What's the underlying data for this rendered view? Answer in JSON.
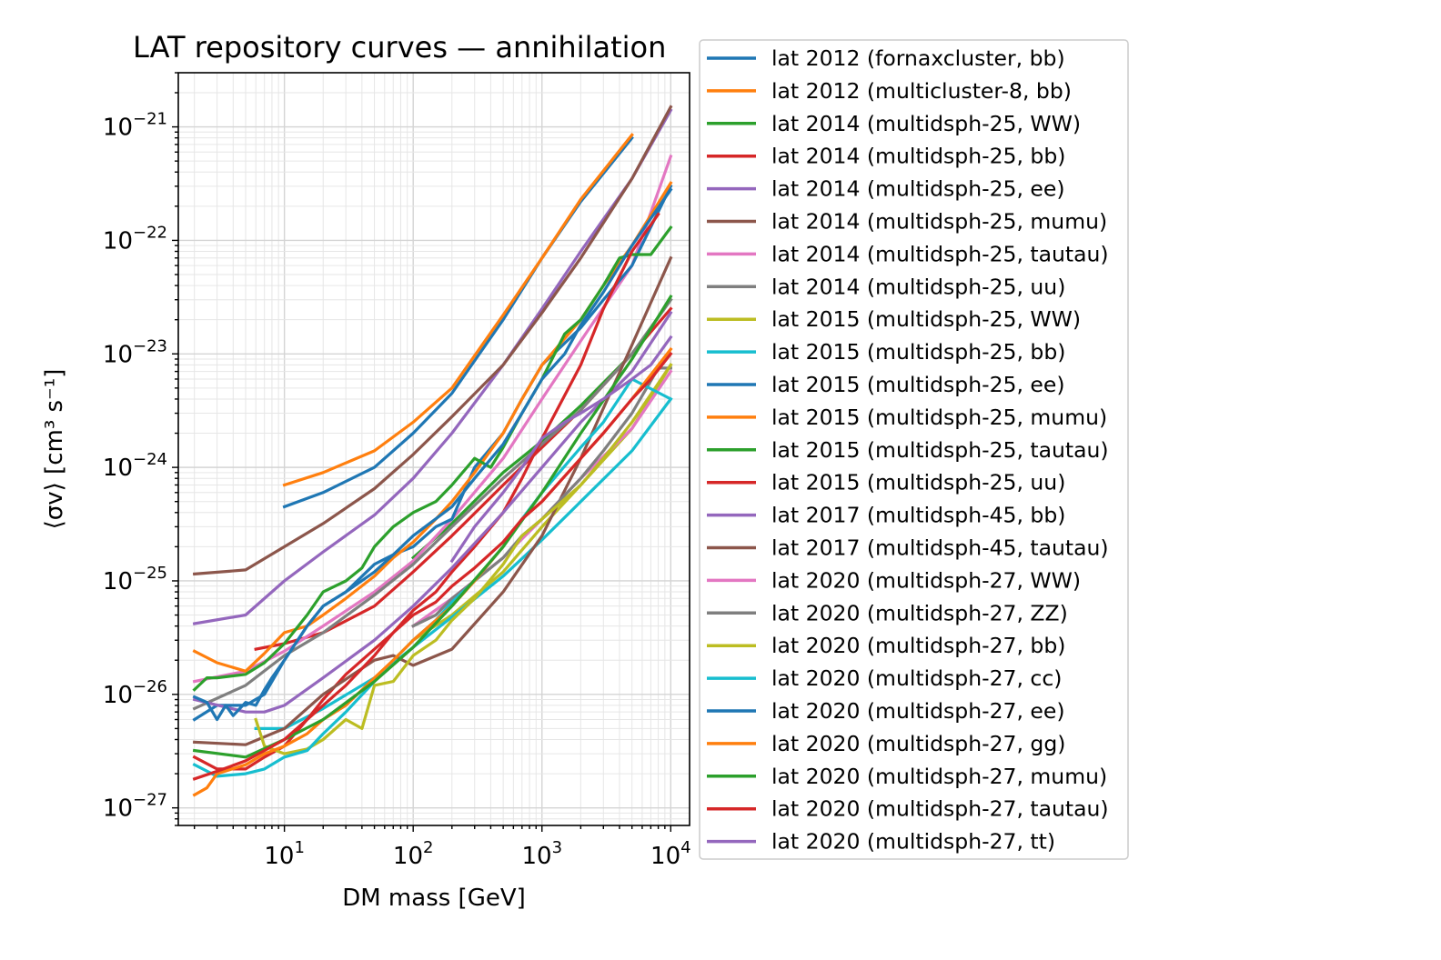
{
  "chart_data": {
    "type": "line",
    "title": "LAT repository curves — annihilation",
    "xlabel": "DM mass [GeV]",
    "ylabel": "⟨σv⟩ [cm³ s⁻¹]",
    "xscale": "log",
    "yscale": "log",
    "xlim": [
      1.5,
      14000
    ],
    "ylim": [
      7e-28,
      3e-21
    ],
    "grid": "major and minor",
    "legend_position": "right, outside plot",
    "x_ticks": [
      {
        "base": "10",
        "exp": "1",
        "value": 10
      },
      {
        "base": "10",
        "exp": "2",
        "value": 100
      },
      {
        "base": "10",
        "exp": "3",
        "value": 1000
      },
      {
        "base": "10",
        "exp": "4",
        "value": 10000
      }
    ],
    "y_ticks": [
      {
        "base": "10",
        "exp": "−27",
        "value": 1e-27
      },
      {
        "base": "10",
        "exp": "−26",
        "value": 1e-26
      },
      {
        "base": "10",
        "exp": "−25",
        "value": 1e-25
      },
      {
        "base": "10",
        "exp": "−24",
        "value": 1e-24
      },
      {
        "base": "10",
        "exp": "−23",
        "value": 1e-23
      },
      {
        "base": "10",
        "exp": "−22",
        "value": 1e-22
      },
      {
        "base": "10",
        "exp": "−21",
        "value": 1e-21
      }
    ],
    "series": [
      {
        "name": "lat 2012 (fornaxcluster, bb)",
        "color": "#1f77b4",
        "x": [
          10,
          20,
          50,
          100,
          200,
          500,
          1000,
          2000,
          5000
        ],
        "y": [
          4.5e-25,
          6e-25,
          1e-24,
          2e-24,
          4.5e-24,
          2e-23,
          7e-23,
          2.2e-22,
          8e-22
        ]
      },
      {
        "name": "lat 2012 (multicluster-8, bb)",
        "color": "#ff7f0e",
        "x": [
          10,
          20,
          50,
          100,
          200,
          500,
          1000,
          2000,
          5000
        ],
        "y": [
          7e-25,
          9e-25,
          1.4e-24,
          2.5e-24,
          5e-24,
          2.2e-23,
          7e-23,
          2.3e-22,
          8.5e-22
        ]
      },
      {
        "name": "lat 2014 (multidsph-25, WW)",
        "color": "#2ca02c",
        "x": [
          100,
          200,
          500,
          1000,
          2000,
          5000,
          10000
        ],
        "y": [
          1.6e-25,
          3.2e-25,
          9e-25,
          1.7e-24,
          3.5e-24,
          1e-23,
          3e-23
        ]
      },
      {
        "name": "lat 2014 (multidsph-25, bb)",
        "color": "#d62728",
        "x": [
          6,
          10,
          20,
          50,
          100,
          200,
          500,
          1000,
          2000,
          5000,
          10000
        ],
        "y": [
          2.5e-26,
          2.8e-26,
          3.5e-26,
          6e-26,
          1.2e-25,
          2.5e-25,
          7e-25,
          1.5e-24,
          3.2e-24,
          1e-23,
          2.5e-23
        ]
      },
      {
        "name": "lat 2014 (multidsph-25, ee)",
        "color": "#9467bd",
        "x": [
          2,
          5,
          10,
          20,
          50,
          100,
          200,
          500,
          1000,
          2000,
          5000,
          10000
        ],
        "y": [
          4.2e-26,
          5e-26,
          1e-25,
          1.8e-25,
          3.8e-25,
          8e-25,
          2e-24,
          8e-24,
          2.5e-23,
          8e-23,
          3.5e-22,
          1.4e-21
        ]
      },
      {
        "name": "lat 2014 (multidsph-25, mumu)",
        "color": "#8c564b",
        "x": [
          2,
          5,
          10,
          20,
          50,
          100,
          200,
          500,
          1000,
          2000,
          5000,
          10000
        ],
        "y": [
          1.15e-25,
          1.25e-25,
          2e-25,
          3.2e-25,
          6.5e-25,
          1.3e-24,
          2.8e-24,
          8e-24,
          2.3e-23,
          7e-23,
          3.5e-22,
          1.5e-21
        ]
      },
      {
        "name": "lat 2014 (multidsph-25, tautau)",
        "color": "#e377c2",
        "x": [
          2,
          5,
          10,
          20,
          50,
          100,
          200,
          500,
          1000,
          2000,
          5000,
          10000
        ],
        "y": [
          1.3e-26,
          1.6e-26,
          2.4e-26,
          4e-26,
          8e-26,
          1.5e-25,
          3.5e-25,
          1.2e-24,
          4e-24,
          1.3e-23,
          6e-23,
          5.5e-22
        ]
      },
      {
        "name": "lat 2014 (multidsph-25, uu)",
        "color": "#7f7f7f",
        "x": [
          2,
          5,
          10,
          20,
          50,
          100,
          200,
          500,
          1000,
          2000,
          5000,
          10000
        ],
        "y": [
          7.5e-27,
          1.2e-26,
          2.2e-26,
          3.5e-26,
          7.5e-26,
          1.4e-25,
          3e-25,
          8e-25,
          1.6e-24,
          3.2e-24,
          1e-23,
          3e-23
        ]
      },
      {
        "name": "lat 2015 (multidsph-25, WW)",
        "color": "#bcbd22",
        "x": [
          100,
          200,
          500,
          1000,
          2000,
          5000,
          10000
        ],
        "y": [
          3e-26,
          5e-26,
          1.2e-25,
          3e-25,
          7e-25,
          2.2e-24,
          8e-24
        ]
      },
      {
        "name": "lat 2015 (multidsph-25, bb)",
        "color": "#17becf",
        "x": [
          6,
          10,
          20,
          50,
          100,
          200,
          500,
          1000,
          2000,
          5000,
          10000
        ],
        "y": [
          5e-27,
          5e-27,
          7.5e-27,
          1.4e-26,
          2.6e-26,
          4.8e-26,
          1.1e-25,
          2.3e-25,
          5e-25,
          1.4e-24,
          4e-24
        ]
      },
      {
        "name": "lat 2015 (multidsph-25, ee)",
        "color": "#1f77b4",
        "x": [
          2,
          3,
          5,
          7,
          10,
          15,
          20,
          30,
          50,
          70,
          100,
          150,
          200,
          300,
          500,
          700,
          1000,
          2000,
          3000,
          5000,
          10000
        ],
        "y": [
          6e-27,
          8e-27,
          8e-27,
          1e-26,
          2e-26,
          4e-26,
          6e-26,
          8e-26,
          1.4e-25,
          1.7e-25,
          2e-25,
          3e-25,
          3.5e-25,
          1e-24,
          2e-24,
          4e-24,
          8e-24,
          1.7e-23,
          3e-23,
          6e-23,
          3e-22
        ]
      },
      {
        "name": "lat 2015 (multidsph-25, mumu)",
        "color": "#ff7f0e",
        "x": [
          2,
          3,
          5,
          7,
          10,
          15,
          20,
          30,
          50,
          70,
          100,
          150,
          200,
          300,
          500,
          700,
          1000,
          2000,
          3000,
          5000,
          10000
        ],
        "y": [
          2.4e-26,
          1.9e-26,
          1.6e-26,
          2.3e-26,
          3.5e-26,
          4e-26,
          5e-26,
          7e-26,
          1.1e-25,
          1.6e-25,
          2.2e-25,
          3.5e-25,
          5e-25,
          9e-25,
          2e-24,
          4e-24,
          8e-24,
          2e-23,
          4e-23,
          9e-23,
          3.2e-22
        ]
      },
      {
        "name": "lat 2015 (multidsph-25, tautau)",
        "color": "#2ca02c",
        "x": [
          2,
          2.5,
          3,
          5,
          7,
          10,
          15,
          20,
          30,
          40,
          50,
          70,
          100,
          150,
          200,
          300,
          400,
          500,
          700,
          1000,
          1500,
          2000,
          3000,
          4000,
          5000,
          7000,
          10000
        ],
        "y": [
          1.1e-26,
          1.4e-26,
          1.4e-26,
          1.5e-26,
          1.9e-26,
          2.8e-26,
          5e-26,
          8e-26,
          1e-25,
          1.3e-25,
          2e-25,
          3e-25,
          4e-25,
          5e-25,
          7e-25,
          1.2e-24,
          1e-24,
          1.5e-24,
          3e-24,
          6e-24,
          1.5e-23,
          2e-23,
          4e-23,
          7e-23,
          7.5e-23,
          7.5e-23,
          1.3e-22
        ]
      },
      {
        "name": "lat 2015 (multidsph-25, uu)",
        "color": "#d62728",
        "x": [
          2,
          3,
          5,
          7,
          10,
          15,
          20,
          30,
          50,
          70,
          100,
          150,
          200,
          300,
          500,
          700,
          1000,
          2000,
          3000,
          5000,
          8000
        ],
        "y": [
          2.8e-27,
          2.2e-27,
          2.2e-27,
          2.8e-27,
          3.5e-27,
          6e-27,
          9e-27,
          1.5e-26,
          2.5e-26,
          3.5e-26,
          5.5e-26,
          8e-26,
          1.2e-25,
          2e-25,
          4e-25,
          8e-25,
          1.8e-24,
          8e-24,
          2.5e-23,
          8e-23,
          1.7e-22
        ]
      },
      {
        "name": "lat 2017 (multidsph-45, bb)",
        "color": "#9467bd",
        "x": [
          2,
          5,
          7,
          10,
          20,
          50,
          100,
          200,
          500,
          1000,
          2000,
          5000,
          10000
        ],
        "y": [
          9e-27,
          7e-27,
          7e-27,
          8e-27,
          1.4e-26,
          3e-26,
          6e-26,
          1.3e-25,
          4e-25,
          1e-24,
          2.5e-24,
          7e-24,
          2.3e-23
        ]
      },
      {
        "name": "lat 2017 (multidsph-45, tautau)",
        "color": "#8c564b",
        "x": [
          2,
          5,
          10,
          20,
          50,
          70,
          100,
          200,
          500,
          1000,
          2000,
          5000,
          10000
        ],
        "y": [
          3.8e-27,
          3.6e-27,
          5e-27,
          1e-26,
          2e-26,
          2.2e-26,
          1.8e-26,
          2.5e-26,
          8e-26,
          2.5e-25,
          1.2e-24,
          1.2e-23,
          7e-23
        ]
      },
      {
        "name": "lat 2020 (multidsph-27, WW)",
        "color": "#e377c2",
        "x": [
          100,
          200,
          500,
          1000,
          2000,
          5000,
          10000
        ],
        "y": [
          4e-26,
          7e-26,
          1.6e-25,
          3.5e-25,
          8e-25,
          2.2e-24,
          7e-24
        ]
      },
      {
        "name": "lat 2020 (multidsph-27, ZZ)",
        "color": "#7f7f7f",
        "x": [
          100,
          150,
          200,
          300,
          500,
          700,
          1000,
          2000,
          3000,
          5000,
          8000,
          10000
        ],
        "y": [
          4e-26,
          5e-26,
          7e-26,
          1e-25,
          1.6e-25,
          2.5e-25,
          3.5e-25,
          8e-25,
          1.4e-24,
          3e-24,
          7.5e-24,
          7.5e-24
        ]
      },
      {
        "name": "lat 2020 (multidsph-27, bb)",
        "color": "#bcbd22",
        "x": [
          6,
          7,
          10,
          15,
          20,
          30,
          40,
          50,
          70,
          100,
          150,
          200,
          300,
          500,
          700,
          1000,
          2000,
          3000,
          5000,
          10000
        ],
        "y": [
          6e-27,
          3.5e-27,
          3e-27,
          3.3e-27,
          4e-27,
          6e-27,
          5e-27,
          1.2e-26,
          1.3e-26,
          2.2e-26,
          3e-26,
          4.5e-26,
          7e-26,
          1.4e-25,
          2.5e-25,
          3.5e-25,
          7e-25,
          1.2e-24,
          2.5e-24,
          8e-24
        ]
      },
      {
        "name": "lat 2020 (multidsph-27, cc)",
        "color": "#17becf",
        "x": [
          2,
          3,
          5,
          7,
          10,
          15,
          20,
          30,
          50,
          70,
          100,
          150,
          200,
          300,
          500,
          700,
          1000,
          2000,
          3000,
          5000,
          10000
        ],
        "y": [
          2.4e-27,
          1.9e-27,
          2e-27,
          2.2e-27,
          2.8e-27,
          3.2e-27,
          4.5e-27,
          7e-27,
          1.3e-26,
          2e-26,
          3e-26,
          4.5e-26,
          6.5e-26,
          1e-25,
          2e-25,
          3.5e-25,
          6e-25,
          1.5e-24,
          2.5e-24,
          6e-24,
          4e-24
        ]
      },
      {
        "name": "lat 2020 (multidsph-27, ee)",
        "color": "#1f77b4",
        "x": [
          2,
          2.5,
          3,
          3.5,
          4,
          5,
          6,
          7,
          8,
          10,
          15,
          20,
          30,
          50,
          70,
          100,
          200,
          300,
          500,
          700,
          1000,
          1500,
          2000,
          3000,
          5000,
          10000
        ],
        "y": [
          9.5e-27,
          8.5e-27,
          6e-27,
          8e-27,
          6.5e-27,
          8.5e-27,
          8e-27,
          1.1e-26,
          1.4e-26,
          2e-26,
          4e-26,
          6e-26,
          8e-26,
          1.2e-25,
          1.7e-25,
          2.5e-25,
          4.5e-25,
          8e-25,
          1.6e-24,
          3e-24,
          6e-24,
          1e-23,
          1.8e-23,
          3.5e-23,
          9e-23,
          2.8e-22
        ]
      },
      {
        "name": "lat 2020 (multidsph-27, gg)",
        "color": "#ff7f0e",
        "x": [
          2,
          2.5,
          3,
          5,
          7,
          10,
          15,
          20,
          30,
          50,
          70,
          100,
          150,
          200,
          300,
          500,
          700,
          1000,
          2000,
          3000,
          5000,
          10000
        ],
        "y": [
          1.3e-27,
          1.5e-27,
          2e-27,
          2.4e-27,
          3e-27,
          3.5e-27,
          4.5e-27,
          6e-27,
          8e-27,
          1.4e-26,
          2e-26,
          3e-26,
          4.5e-26,
          6e-26,
          1e-25,
          2e-25,
          3.5e-25,
          5e-25,
          1.2e-24,
          2e-24,
          4e-24,
          1.1e-23
        ]
      },
      {
        "name": "lat 2020 (multidsph-27, mumu)",
        "color": "#2ca02c",
        "x": [
          2,
          5,
          10,
          20,
          50,
          100,
          200,
          500,
          1000,
          2000,
          5000,
          10000
        ],
        "y": [
          3.2e-27,
          2.8e-27,
          4e-27,
          6e-27,
          1.3e-26,
          2.6e-26,
          6e-26,
          2e-25,
          6e-25,
          2e-24,
          9e-24,
          3.2e-23
        ]
      },
      {
        "name": "lat 2020 (multidsph-27, tautau)",
        "color": "#d62728",
        "x": [
          2,
          3,
          5,
          7,
          10,
          15,
          20,
          30,
          50,
          70,
          100,
          150,
          200,
          300,
          500,
          700,
          1000,
          2000,
          3000,
          5000,
          7000,
          10000
        ],
        "y": [
          1.8e-27,
          2.1e-27,
          2.6e-27,
          3.2e-27,
          4e-27,
          6e-27,
          8e-27,
          1.2e-26,
          2.2e-26,
          3.5e-26,
          5e-26,
          6.5e-26,
          9e-26,
          1.3e-25,
          2.2e-25,
          3.5e-25,
          5e-25,
          1.2e-24,
          2e-24,
          4e-24,
          6e-24,
          1e-23
        ]
      },
      {
        "name": "lat 2020 (multidsph-27, tt)",
        "color": "#9467bd",
        "x": [
          200,
          300,
          500,
          700,
          1000,
          1500,
          2000,
          3000,
          5000,
          7000,
          10000
        ],
        "y": [
          1.5e-25,
          3e-25,
          6e-25,
          1e-24,
          1.8e-24,
          2.5e-24,
          3e-24,
          4e-24,
          6e-24,
          8e-24,
          1.4e-23
        ]
      }
    ]
  }
}
